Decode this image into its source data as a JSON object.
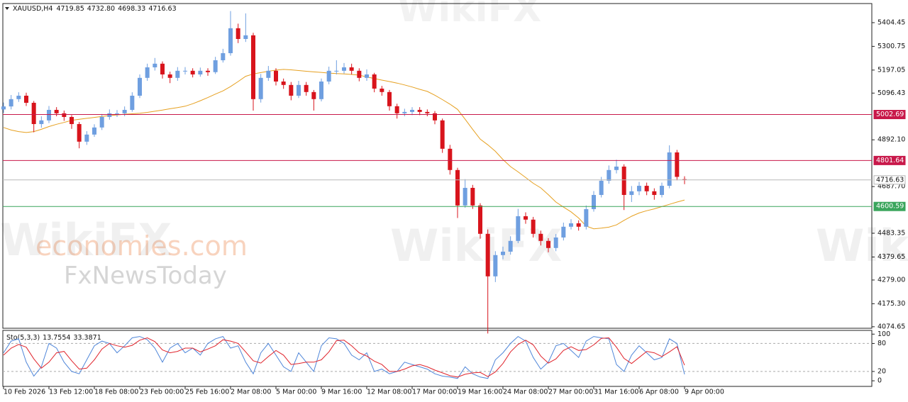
{
  "chart_data": {
    "type": "candlestick",
    "title": "XAUUSD,H4",
    "header_values": [
      "4719.85",
      "4732.80",
      "4698.33",
      "4716.63"
    ],
    "watermarks": [
      "economies.com",
      "FxNewsToday",
      "WikiFX"
    ],
    "categories": [
      "10 Feb 2026",
      null,
      null,
      null,
      null,
      null,
      "13 Feb 12:00",
      null,
      null,
      null,
      null,
      null,
      "18 Feb 08:00",
      null,
      null,
      null,
      null,
      null,
      "23 Feb 00:00",
      null,
      null,
      null,
      null,
      null,
      "25 Feb 16:00",
      null,
      null,
      null,
      null,
      null,
      "2 Mar 08:00",
      null,
      null,
      null,
      null,
      null,
      "5 Mar 00:00",
      null,
      null,
      null,
      null,
      null,
      "9 Mar 16:00",
      null,
      null,
      null,
      null,
      null,
      "12 Mar 08:00",
      null,
      null,
      null,
      null,
      null,
      "17 Mar 00:00",
      null,
      null,
      null,
      null,
      null,
      "19 Mar 16:00",
      null,
      null,
      null,
      null,
      null,
      "24 Mar 08:00",
      null,
      null,
      null,
      null,
      null,
      "27 Mar 00:00",
      null,
      null,
      null,
      null,
      null,
      "31 Mar 16:00",
      null,
      null,
      null,
      null,
      null,
      "6 Apr 08:00",
      null,
      null,
      null,
      null,
      null,
      "9 Apr 00:00"
    ],
    "open": [
      5025,
      5038,
      5070,
      5085,
      5054,
      4961,
      4977,
      5023,
      5008,
      4992,
      4961,
      4884,
      4915,
      4946,
      4992,
      5008,
      5008,
      5023,
      5085,
      5163,
      5209,
      5225,
      5178,
      5163,
      5194,
      5194,
      5178,
      5194,
      5188,
      5240,
      5271,
      5380,
      5333,
      5349,
      5070,
      5163,
      5194,
      5147,
      5132,
      5085,
      5132,
      5101,
      5070,
      5147,
      5194,
      5194,
      5209,
      5194,
      5163,
      5178,
      5116,
      5101,
      5039,
      5008,
      5014,
      5023,
      5014,
      5008,
      4977,
      4853,
      4760,
      4605,
      4682,
      4605,
      4481,
      4295,
      4388,
      4403,
      4450,
      4558,
      4543,
      4481,
      4450,
      4419,
      4465,
      4512,
      4527,
      4512,
      4589,
      4651,
      4713,
      4760,
      4775,
      4651,
      4667,
      4691,
      4667,
      4651,
      4691,
      4837,
      4719.85
    ],
    "high": [
      5055,
      5088,
      5100,
      5098,
      5062,
      4995,
      5040,
      5035,
      5020,
      5000,
      4970,
      4930,
      4960,
      5005,
      5025,
      5022,
      5038,
      5100,
      5178,
      5225,
      5250,
      5235,
      5190,
      5210,
      5210,
      5205,
      5208,
      5205,
      5255,
      5290,
      5455,
      5400,
      5445,
      5360,
      5180,
      5215,
      5205,
      5160,
      5145,
      5150,
      5145,
      5110,
      5160,
      5212,
      5240,
      5228,
      5225,
      5205,
      5200,
      5185,
      5128,
      5110,
      5050,
      5028,
      5035,
      5035,
      5025,
      5018,
      4985,
      4870,
      4770,
      4720,
      4695,
      4615,
      4500,
      4405,
      4425,
      4470,
      4590,
      4575,
      4555,
      4495,
      4462,
      4480,
      4530,
      4545,
      4540,
      4605,
      4668,
      4730,
      4780,
      4805,
      4785,
      4690,
      4708,
      4705,
      4680,
      4705,
      4868,
      4848,
      4732.8
    ],
    "low": [
      5010,
      5025,
      5058,
      5040,
      4925,
      4945,
      4965,
      4995,
      4975,
      4940,
      4855,
      4870,
      4905,
      4935,
      4980,
      4992,
      4995,
      5015,
      5075,
      5150,
      5195,
      5160,
      5140,
      5150,
      5178,
      5165,
      5168,
      5172,
      5180,
      5230,
      5260,
      5315,
      5320,
      5020,
      5055,
      5150,
      5130,
      5115,
      5065,
      5075,
      5085,
      5020,
      5060,
      5135,
      5178,
      5182,
      5178,
      5148,
      5150,
      5100,
      5085,
      5020,
      4985,
      4995,
      5000,
      5000,
      4995,
      4960,
      4835,
      4740,
      4550,
      4595,
      4590,
      4460,
      4045,
      4270,
      4370,
      4390,
      4440,
      4525,
      4465,
      4430,
      4400,
      4405,
      4452,
      4500,
      4495,
      4500,
      4578,
      4640,
      4700,
      4745,
      4585,
      4620,
      4650,
      4650,
      4630,
      4640,
      4680,
      4715,
      4698.33
    ],
    "close": [
      5038,
      5070,
      5085,
      5054,
      4961,
      4977,
      5023,
      5008,
      4992,
      4961,
      4884,
      4915,
      4946,
      4992,
      5008,
      5008,
      5023,
      5085,
      5163,
      5209,
      5225,
      5178,
      5163,
      5194,
      5194,
      5178,
      5194,
      5188,
      5240,
      5271,
      5380,
      5333,
      5349,
      5070,
      5163,
      5194,
      5147,
      5132,
      5085,
      5132,
      5101,
      5070,
      5147,
      5194,
      5194,
      5209,
      5194,
      5163,
      5178,
      5116,
      5101,
      5039,
      5008,
      5014,
      5023,
      5014,
      5008,
      4977,
      4853,
      4760,
      4605,
      4682,
      4605,
      4481,
      4295,
      4388,
      4403,
      4450,
      4558,
      4543,
      4481,
      4450,
      4419,
      4465,
      4512,
      4527,
      4512,
      4589,
      4651,
      4713,
      4760,
      4775,
      4651,
      4667,
      4691,
      4667,
      4651,
      4691,
      4837,
      4730,
      4716.63
    ],
    "up_color": "#6f9fe0",
    "down_color": "#d8141c",
    "overlay": {
      "color": "#e6a020",
      "values": [
        4946,
        4935,
        4928,
        4924,
        4928,
        4938,
        4950,
        4960,
        4968,
        4977,
        4982,
        4986,
        4990,
        4994,
        4998,
        5001,
        5004,
        5006,
        5008,
        5012,
        5017,
        5022,
        5028,
        5033,
        5039,
        5050,
        5063,
        5077,
        5092,
        5106,
        5125,
        5147,
        5170,
        5180,
        5186,
        5192,
        5197,
        5200,
        5198,
        5195,
        5192,
        5189,
        5187,
        5184,
        5182,
        5180,
        5178,
        5175,
        5167,
        5160,
        5153,
        5147,
        5140,
        5132,
        5123,
        5113,
        5104,
        5087,
        5068,
        5048,
        5025,
        4982,
        4938,
        4895,
        4870,
        4842,
        4806,
        4775,
        4752,
        4727,
        4702,
        4682,
        4652,
        4620,
        4598,
        4577,
        4550,
        4515,
        4503,
        4506,
        4510,
        4520,
        4540,
        4558,
        4572,
        4582,
        4590,
        4600,
        4610,
        4620,
        4629
      ]
    },
    "ylim": [
      4068,
      5488
    ],
    "yticks": [
      5404.45,
      5300.75,
      5197.05,
      5096.43,
      {
        "value": 4892.1,
        "label": "4892.10"
      },
      {
        "value": 4687.7,
        "label": "4687.70"
      },
      4483.35,
      4379.65,
      {
        "value": 4279,
        "label": "4279.00"
      },
      {
        "value": 4175.3,
        "label": "4175.30"
      },
      4074.65
    ],
    "levels": [
      {
        "value": 5002.69,
        "color": "#c8184a"
      },
      {
        "value": 4801.64,
        "color": "#c8184a"
      },
      {
        "value": 4716.63,
        "color": "#b8b8b8"
      },
      {
        "value": 4600.59,
        "color": "#3aa55c"
      }
    ],
    "indicator": {
      "type": "line",
      "title": "Sto(5,3,3)",
      "ylim": [
        -12,
        108
      ],
      "yticks": [
        100,
        80,
        20,
        0
      ],
      "levels": [
        80,
        20
      ],
      "series": [
        {
          "color": "#4f86d9",
          "values": [
            60,
            85,
            90,
            40,
            10,
            30,
            80,
            70,
            40,
            20,
            15,
            45,
            75,
            85,
            80,
            60,
            75,
            92,
            95,
            88,
            70,
            40,
            70,
            80,
            60,
            70,
            55,
            80,
            90,
            95,
            70,
            75,
            40,
            15,
            60,
            80,
            55,
            30,
            20,
            60,
            40,
            20,
            75,
            92,
            90,
            80,
            55,
            45,
            60,
            20,
            25,
            15,
            20,
            40,
            35,
            30,
            25,
            15,
            10,
            8,
            5,
            30,
            15,
            8,
            5,
            45,
            60,
            80,
            95,
            85,
            50,
            25,
            40,
            75,
            80,
            65,
            50,
            85,
            95,
            92,
            90,
            35,
            20,
            55,
            75,
            60,
            45,
            50,
            90,
            80,
            13.7554
          ]
        },
        {
          "color": "#e0242c",
          "values": [
            55,
            70,
            78,
            72,
            47,
            27,
            40,
            60,
            63,
            43,
            25,
            27,
            45,
            68,
            80,
            75,
            72,
            76,
            87,
            92,
            84,
            66,
            60,
            63,
            70,
            70,
            62,
            68,
            75,
            88,
            85,
            80,
            62,
            43,
            38,
            52,
            65,
            55,
            35,
            37,
            40,
            40,
            45,
            62,
            86,
            87,
            75,
            60,
            53,
            42,
            35,
            20,
            20,
            25,
            32,
            35,
            30,
            23,
            17,
            11,
            8,
            14,
            17,
            18,
            9,
            19,
            37,
            62,
            78,
            87,
            77,
            53,
            38,
            47,
            65,
            73,
            65,
            67,
            77,
            91,
            92,
            72,
            48,
            37,
            50,
            63,
            60,
            52,
            62,
            73,
            33.3871
          ]
        }
      ]
    }
  }
}
